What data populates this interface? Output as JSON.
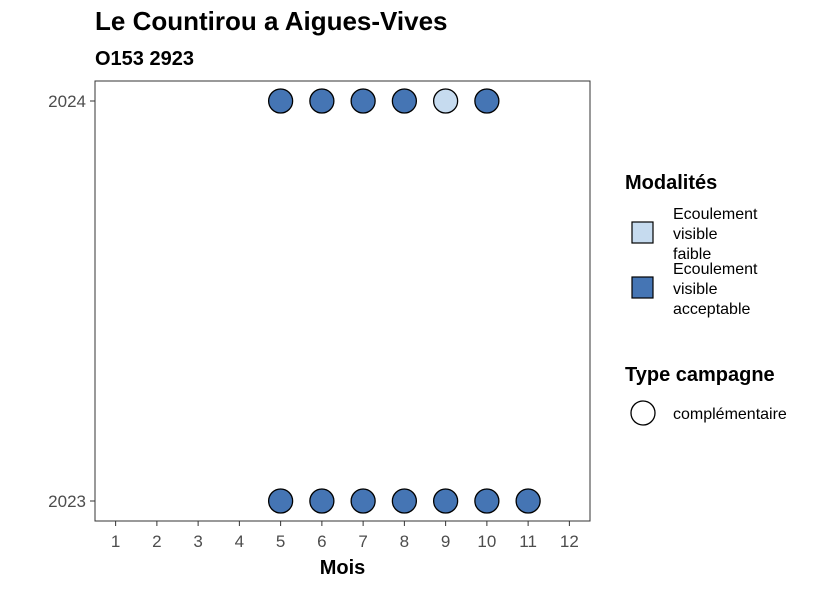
{
  "chart_data": {
    "type": "scatter",
    "title": "Le Countirou a Aigues-Vives",
    "subtitle": "O153 2923",
    "xlabel": "Mois",
    "ylabel": "",
    "x_ticks": [
      "1",
      "2",
      "3",
      "4",
      "5",
      "6",
      "7",
      "8",
      "9",
      "10",
      "11",
      "12"
    ],
    "y_categories": [
      "2023",
      "2024"
    ],
    "xlim": [
      0.5,
      12.5
    ],
    "grid": false,
    "legend_placement": "right",
    "colors": {
      "Ecoulement visible faible": "#c6dbef",
      "Ecoulement visible acceptable": "#4575b4"
    },
    "points": [
      {
        "x": 5,
        "y": "2023",
        "modalite": "Ecoulement visible acceptable"
      },
      {
        "x": 6,
        "y": "2023",
        "modalite": "Ecoulement visible acceptable"
      },
      {
        "x": 7,
        "y": "2023",
        "modalite": "Ecoulement visible acceptable"
      },
      {
        "x": 8,
        "y": "2023",
        "modalite": "Ecoulement visible acceptable"
      },
      {
        "x": 9,
        "y": "2023",
        "modalite": "Ecoulement visible acceptable"
      },
      {
        "x": 10,
        "y": "2023",
        "modalite": "Ecoulement visible acceptable"
      },
      {
        "x": 11,
        "y": "2023",
        "modalite": "Ecoulement visible acceptable"
      },
      {
        "x": 5,
        "y": "2024",
        "modalite": "Ecoulement visible acceptable"
      },
      {
        "x": 6,
        "y": "2024",
        "modalite": "Ecoulement visible acceptable"
      },
      {
        "x": 7,
        "y": "2024",
        "modalite": "Ecoulement visible acceptable"
      },
      {
        "x": 8,
        "y": "2024",
        "modalite": "Ecoulement visible acceptable"
      },
      {
        "x": 9,
        "y": "2024",
        "modalite": "Ecoulement visible faible"
      },
      {
        "x": 10,
        "y": "2024",
        "modalite": "Ecoulement visible acceptable"
      }
    ],
    "legend": {
      "fill_title": "Modalités",
      "fill_items": [
        {
          "label": "Ecoulement visible faible",
          "lines": [
            "Ecoulement",
            "visible",
            "faible"
          ]
        },
        {
          "label": "Ecoulement visible acceptable",
          "lines": [
            "Ecoulement",
            "visible",
            "acceptable"
          ]
        }
      ],
      "shape_title": "Type campagne",
      "shape_items": [
        {
          "label": "complémentaire"
        }
      ]
    }
  }
}
